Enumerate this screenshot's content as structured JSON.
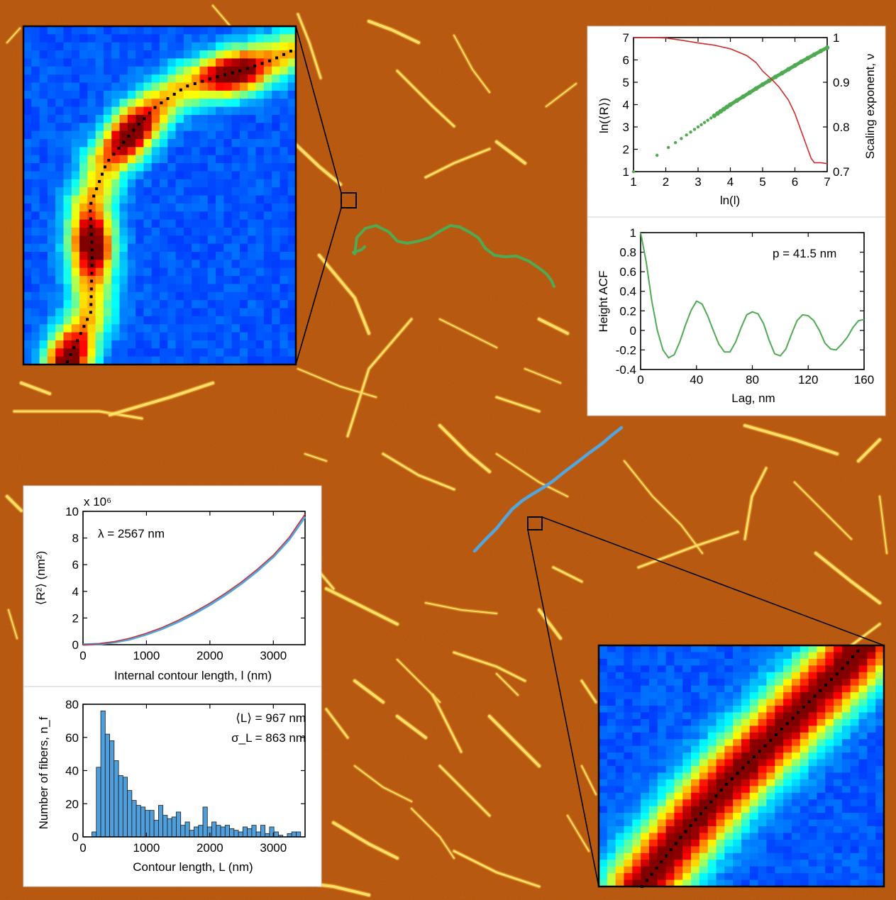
{
  "colors": {
    "substrate": "#b54f0c",
    "fiber": "#ffe36a",
    "green_trace": "#4eab52",
    "blue_trace": "#54a5db",
    "red_line": "#d22b2b",
    "hist_bar": "#4f9fdc"
  },
  "chart_data": [
    {
      "id": "scaling",
      "type": "line",
      "xlabel": "ln(l)",
      "ylabel_left": "ln(⟨R⟩)",
      "ylabel_right": "Scaling exponent, ν",
      "xlim": [
        1,
        7
      ],
      "ylim_left": [
        1,
        7
      ],
      "ylim_right": [
        0.7,
        1.0
      ],
      "x_ticks": [
        "1",
        "2",
        "3",
        "4",
        "5",
        "6",
        "7"
      ],
      "y_ticks_left": [
        "1",
        "2",
        "3",
        "4",
        "5",
        "6",
        "7"
      ],
      "y_ticks_right": [
        "0.7",
        "0.8",
        "0.9",
        "1"
      ],
      "series": [
        {
          "axis": "left",
          "style": "dots",
          "color": "#4eab52",
          "x": [
            1.0,
            1.73,
            2.08,
            2.3,
            2.48,
            2.64,
            2.77,
            2.89,
            3.0,
            3.1,
            3.2,
            3.3,
            3.4,
            3.5,
            3.6,
            3.7,
            3.8,
            3.9,
            4.0,
            4.2,
            4.4,
            4.6,
            4.8,
            5.0,
            5.2,
            5.4,
            5.6,
            5.8,
            6.0,
            6.2,
            6.4,
            6.6,
            6.8,
            7.0
          ],
          "y": [
            1.0,
            1.73,
            2.08,
            2.3,
            2.48,
            2.64,
            2.77,
            2.89,
            3.0,
            3.1,
            3.2,
            3.3,
            3.4,
            3.5,
            3.6,
            3.7,
            3.8,
            3.9,
            4.0,
            4.18,
            4.36,
            4.54,
            4.72,
            4.9,
            5.07,
            5.24,
            5.41,
            5.58,
            5.75,
            5.92,
            6.08,
            6.24,
            6.4,
            6.55
          ]
        },
        {
          "axis": "right",
          "style": "line",
          "color": "#d22b2b",
          "x": [
            1.0,
            1.5,
            2.0,
            2.5,
            3.0,
            3.5,
            4.0,
            4.5,
            4.8,
            5.0,
            5.3,
            5.5,
            5.8,
            6.0,
            6.2,
            6.4,
            6.5,
            6.6,
            6.8,
            7.0
          ],
          "y": [
            1.0,
            1.0,
            0.999,
            0.994,
            0.988,
            0.983,
            0.975,
            0.96,
            0.944,
            0.925,
            0.905,
            0.89,
            0.86,
            0.83,
            0.79,
            0.75,
            0.73,
            0.72,
            0.72,
            0.718
          ]
        }
      ]
    },
    {
      "id": "acf",
      "type": "line",
      "xlabel": "Lag, nm",
      "ylabel": "Height ACF",
      "xlim": [
        0,
        160
      ],
      "ylim": [
        -0.4,
        1.0
      ],
      "x_ticks": [
        "0",
        "40",
        "80",
        "120",
        "160"
      ],
      "y_ticks": [
        "-0.4",
        "-0.2",
        "0",
        "0.2",
        "0.4",
        "0.6",
        "0.8",
        "1"
      ],
      "annotation": "p = 41.5 nm",
      "series": [
        {
          "color": "#4eab52",
          "x": [
            0,
            4,
            8,
            12,
            16,
            20,
            24,
            28,
            32,
            36,
            40,
            44,
            48,
            52,
            56,
            60,
            64,
            68,
            72,
            76,
            80,
            84,
            88,
            92,
            96,
            100,
            104,
            108,
            112,
            116,
            120,
            124,
            128,
            132,
            136,
            140,
            144,
            148,
            152,
            156,
            160
          ],
          "y": [
            1.0,
            0.7,
            0.3,
            0.0,
            -0.2,
            -0.28,
            -0.25,
            -0.12,
            0.05,
            0.2,
            0.3,
            0.27,
            0.15,
            0.0,
            -0.14,
            -0.22,
            -0.22,
            -0.12,
            0.03,
            0.16,
            0.19,
            0.17,
            0.07,
            -0.1,
            -0.24,
            -0.26,
            -0.19,
            -0.04,
            0.1,
            0.16,
            0.15,
            0.1,
            0.0,
            -0.13,
            -0.19,
            -0.2,
            -0.14,
            -0.07,
            0.03,
            0.1,
            0.11
          ]
        }
      ]
    },
    {
      "id": "msd",
      "type": "line",
      "xlabel": "Internal contour length, l (nm)",
      "ylabel": "⟨R²⟩ (nm²)",
      "y_multiplier": "x 10⁶",
      "xlim": [
        0,
        3500
      ],
      "ylim": [
        0,
        10
      ],
      "x_ticks": [
        "0",
        "1000",
        "2000",
        "3000"
      ],
      "y_ticks": [
        "0",
        "2",
        "4",
        "6",
        "8",
        "10"
      ],
      "annotation": "λ = 2567 nm",
      "series": [
        {
          "color": "#54a5db",
          "x": [
            0,
            250,
            500,
            750,
            1000,
            1250,
            1500,
            1750,
            2000,
            2250,
            2500,
            2750,
            3000,
            3250,
            3500
          ],
          "y": [
            0,
            0.05,
            0.19,
            0.42,
            0.78,
            1.2,
            1.72,
            2.32,
            3.0,
            3.76,
            4.6,
            5.55,
            6.6,
            7.9,
            9.6
          ]
        },
        {
          "color": "#d22b2b",
          "x": [
            0,
            250,
            500,
            750,
            1000,
            1250,
            1500,
            1750,
            2000,
            2250,
            2500,
            2750,
            3000,
            3250,
            3500
          ],
          "y": [
            0,
            0.06,
            0.23,
            0.5,
            0.86,
            1.3,
            1.83,
            2.44,
            3.12,
            3.88,
            4.72,
            5.67,
            6.72,
            8.05,
            9.8
          ]
        }
      ]
    },
    {
      "id": "hist",
      "type": "bar",
      "xlabel": "Contour length, L (nm)",
      "ylabel": "Number of fibers, n_f",
      "xlim": [
        0,
        3500
      ],
      "ylim": [
        0,
        80
      ],
      "x_ticks": [
        "0",
        "1000",
        "2000",
        "3000"
      ],
      "y_ticks": [
        "0",
        "20",
        "40",
        "60",
        "80"
      ],
      "annotation_lines": [
        "⟨L⟩ = 967 nm",
        "σ_L = 863 nm"
      ],
      "bin_width": 70,
      "bin_starts": [
        140,
        210,
        280,
        350,
        420,
        490,
        560,
        630,
        700,
        770,
        840,
        910,
        980,
        1050,
        1120,
        1190,
        1260,
        1330,
        1400,
        1470,
        1540,
        1610,
        1680,
        1750,
        1820,
        1890,
        1960,
        2030,
        2100,
        2170,
        2240,
        2310,
        2380,
        2450,
        2520,
        2590,
        2660,
        2730,
        2800,
        2870,
        2940,
        3010,
        3080,
        3150,
        3220,
        3290,
        3360,
        3430
      ],
      "values": [
        3,
        42,
        76,
        62,
        58,
        46,
        37,
        36,
        28,
        22,
        19,
        18,
        16,
        16,
        10,
        19,
        13,
        11,
        12,
        15,
        7,
        9,
        4,
        6,
        7,
        18,
        6,
        9,
        7,
        6,
        7,
        5,
        4,
        3,
        6,
        5,
        7,
        3,
        7,
        2,
        6,
        3,
        1,
        0,
        2,
        3,
        3,
        0
      ]
    },
    {
      "id": "heatmap-top",
      "type": "heatmap",
      "colormap": "jet",
      "cols": 34,
      "rows": 42
    },
    {
      "id": "heatmap-bottom",
      "type": "heatmap",
      "colormap": "jet",
      "cols": 34,
      "rows": 36
    }
  ]
}
